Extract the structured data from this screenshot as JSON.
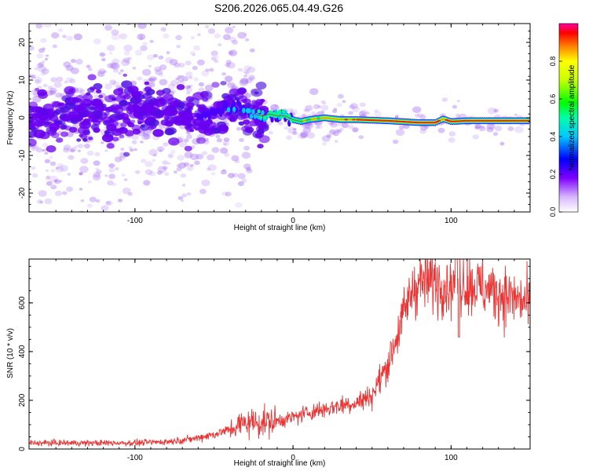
{
  "title": "S206.2026.065.04.49.G26",
  "chart_data": [
    {
      "type": "heatmap",
      "xlabel": "Height of straight line (km)",
      "ylabel": "Frequency (Hz)",
      "xlim": [
        -167,
        150
      ],
      "ylim": [
        -25,
        25
      ],
      "xticks": [
        -100,
        0,
        100
      ],
      "yticks": [
        -20,
        -10,
        0,
        10,
        20
      ],
      "colorbar": {
        "label": "Normalized spectral amplitude",
        "range": [
          0,
          1
        ],
        "ticks": [
          0.0,
          0.2,
          0.4,
          0.6,
          0.8
        ]
      },
      "ridge_line": {
        "heights": [
          -165,
          -140,
          -120,
          -100,
          -80,
          -60,
          -45,
          -35,
          -25,
          -20,
          -15,
          -10,
          -5,
          0,
          5,
          10,
          20,
          30,
          40,
          60,
          80,
          90,
          95,
          100,
          110,
          130,
          150
        ],
        "frequencies": [
          0,
          0.5,
          1,
          1.5,
          1,
          0.5,
          2,
          3,
          1,
          0.5,
          1,
          0.5,
          0.5,
          -0.5,
          -1,
          -0.5,
          0,
          -0.5,
          -0.5,
          -0.8,
          -1.3,
          -1.3,
          -0.3,
          -1,
          -0.8,
          -0.8,
          -0.8
        ],
        "amplitudes": [
          0.15,
          0.15,
          0.15,
          0.15,
          0.15,
          0.2,
          0.3,
          0.35,
          0.45,
          0.5,
          0.55,
          0.6,
          0.65,
          0.6,
          0.65,
          0.7,
          0.75,
          0.8,
          0.9,
          0.95,
          0.95,
          0.9,
          0.85,
          0.95,
          0.95,
          0.9,
          0.95
        ]
      }
    },
    {
      "type": "line",
      "xlabel": "Height of straight line (km)",
      "ylabel": "SNR (10 * v/v)",
      "xlim": [
        -167,
        150
      ],
      "ylim": [
        0,
        780
      ],
      "xticks": [
        -100,
        0,
        100
      ],
      "yticks": [
        0,
        200,
        400,
        600
      ],
      "series": [
        {
          "name": "SNR",
          "color": "#ee3333",
          "x": [
            -167,
            -140,
            -120,
            -100,
            -80,
            -65,
            -50,
            -40,
            -30,
            -20,
            -10,
            0,
            10,
            20,
            30,
            40,
            50,
            60,
            70,
            75,
            80,
            90,
            100,
            105,
            110,
            120,
            130,
            140,
            150
          ],
          "y": [
            25,
            25,
            25,
            25,
            30,
            40,
            60,
            80,
            110,
            110,
            115,
            130,
            150,
            165,
            180,
            190,
            220,
            350,
            550,
            650,
            690,
            690,
            670,
            690,
            680,
            660,
            640,
            620,
            590
          ]
        }
      ]
    }
  ]
}
